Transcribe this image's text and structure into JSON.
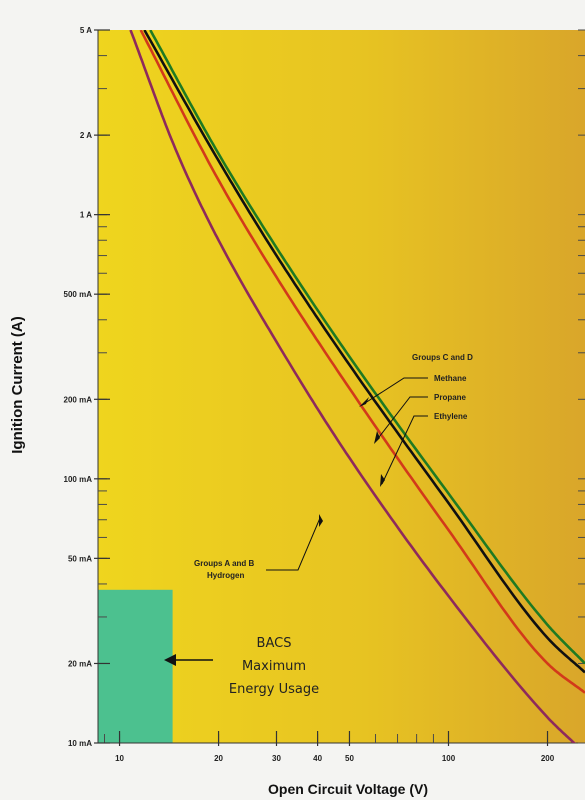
{
  "chart_data": {
    "type": "line",
    "xlabel": "Open Circuit Voltage (V)",
    "ylabel": "Ignition Current (A)",
    "x_scale": "log",
    "y_scale": "log",
    "xlim": [
      8.6,
      260
    ],
    "ylim": [
      0.01,
      5
    ],
    "x_ticks": [
      {
        "value": 10,
        "label": "10"
      },
      {
        "value": 20,
        "label": "20"
      },
      {
        "value": 30,
        "label": "30"
      },
      {
        "value": 40,
        "label": "40"
      },
      {
        "value": 50,
        "label": "50"
      },
      {
        "value": 100,
        "label": "100"
      },
      {
        "value": 200,
        "label": "200"
      }
    ],
    "y_ticks": [
      {
        "value": 5,
        "label": "5 A"
      },
      {
        "value": 2,
        "label": "2 A"
      },
      {
        "value": 1,
        "label": "1 A"
      },
      {
        "value": 0.5,
        "label": "500 mA"
      },
      {
        "value": 0.2,
        "label": "200 mA"
      },
      {
        "value": 0.1,
        "label": "100 mA"
      },
      {
        "value": 0.05,
        "label": "50 mA"
      },
      {
        "value": 0.02,
        "label": "20 mA"
      },
      {
        "value": 0.01,
        "label": "10 mA"
      }
    ],
    "series": [
      {
        "key": "methane",
        "color": "#1f7a22",
        "points": [
          [
            12.4,
            5
          ],
          [
            20,
            1.7
          ],
          [
            30,
            0.75
          ],
          [
            50,
            0.29
          ],
          [
            100,
            0.088
          ],
          [
            200,
            0.028
          ],
          [
            260,
            0.02
          ]
        ]
      },
      {
        "key": "propane",
        "color": "#111111",
        "points": [
          [
            11.9,
            5
          ],
          [
            20,
            1.6
          ],
          [
            30,
            0.7
          ],
          [
            50,
            0.27
          ],
          [
            100,
            0.081
          ],
          [
            200,
            0.025
          ],
          [
            260,
            0.0185
          ]
        ]
      },
      {
        "key": "ethylene",
        "color": "#d23a1a",
        "points": [
          [
            11.6,
            5
          ],
          [
            20,
            1.35
          ],
          [
            30,
            0.58
          ],
          [
            50,
            0.22
          ],
          [
            100,
            0.064
          ],
          [
            200,
            0.02
          ],
          [
            260,
            0.0155
          ]
        ]
      },
      {
        "key": "hydrogen",
        "color": "#8e2a5c",
        "points": [
          [
            10.8,
            5
          ],
          [
            15,
            1.7
          ],
          [
            20,
            0.8
          ],
          [
            30,
            0.33
          ],
          [
            50,
            0.12
          ],
          [
            100,
            0.036
          ],
          [
            200,
            0.0125
          ],
          [
            245,
            0.0098
          ]
        ]
      }
    ],
    "annotations": {
      "groups_cd": "Groups C and D",
      "methane": "Methane",
      "propane": "Propane",
      "ethylene": "Ethylene",
      "groups_ab": "Groups A and B",
      "hydrogen": "Hydrogen"
    },
    "bacs_region": {
      "x": [
        8.6,
        14.5
      ],
      "y": [
        0.01,
        0.038
      ],
      "color": "#4cc18f",
      "label_lines": [
        "BACS",
        "Maximum",
        "Energy Usage"
      ]
    },
    "colors": {
      "background_left": "#efd51e",
      "background_right": "#d9a62a"
    }
  }
}
